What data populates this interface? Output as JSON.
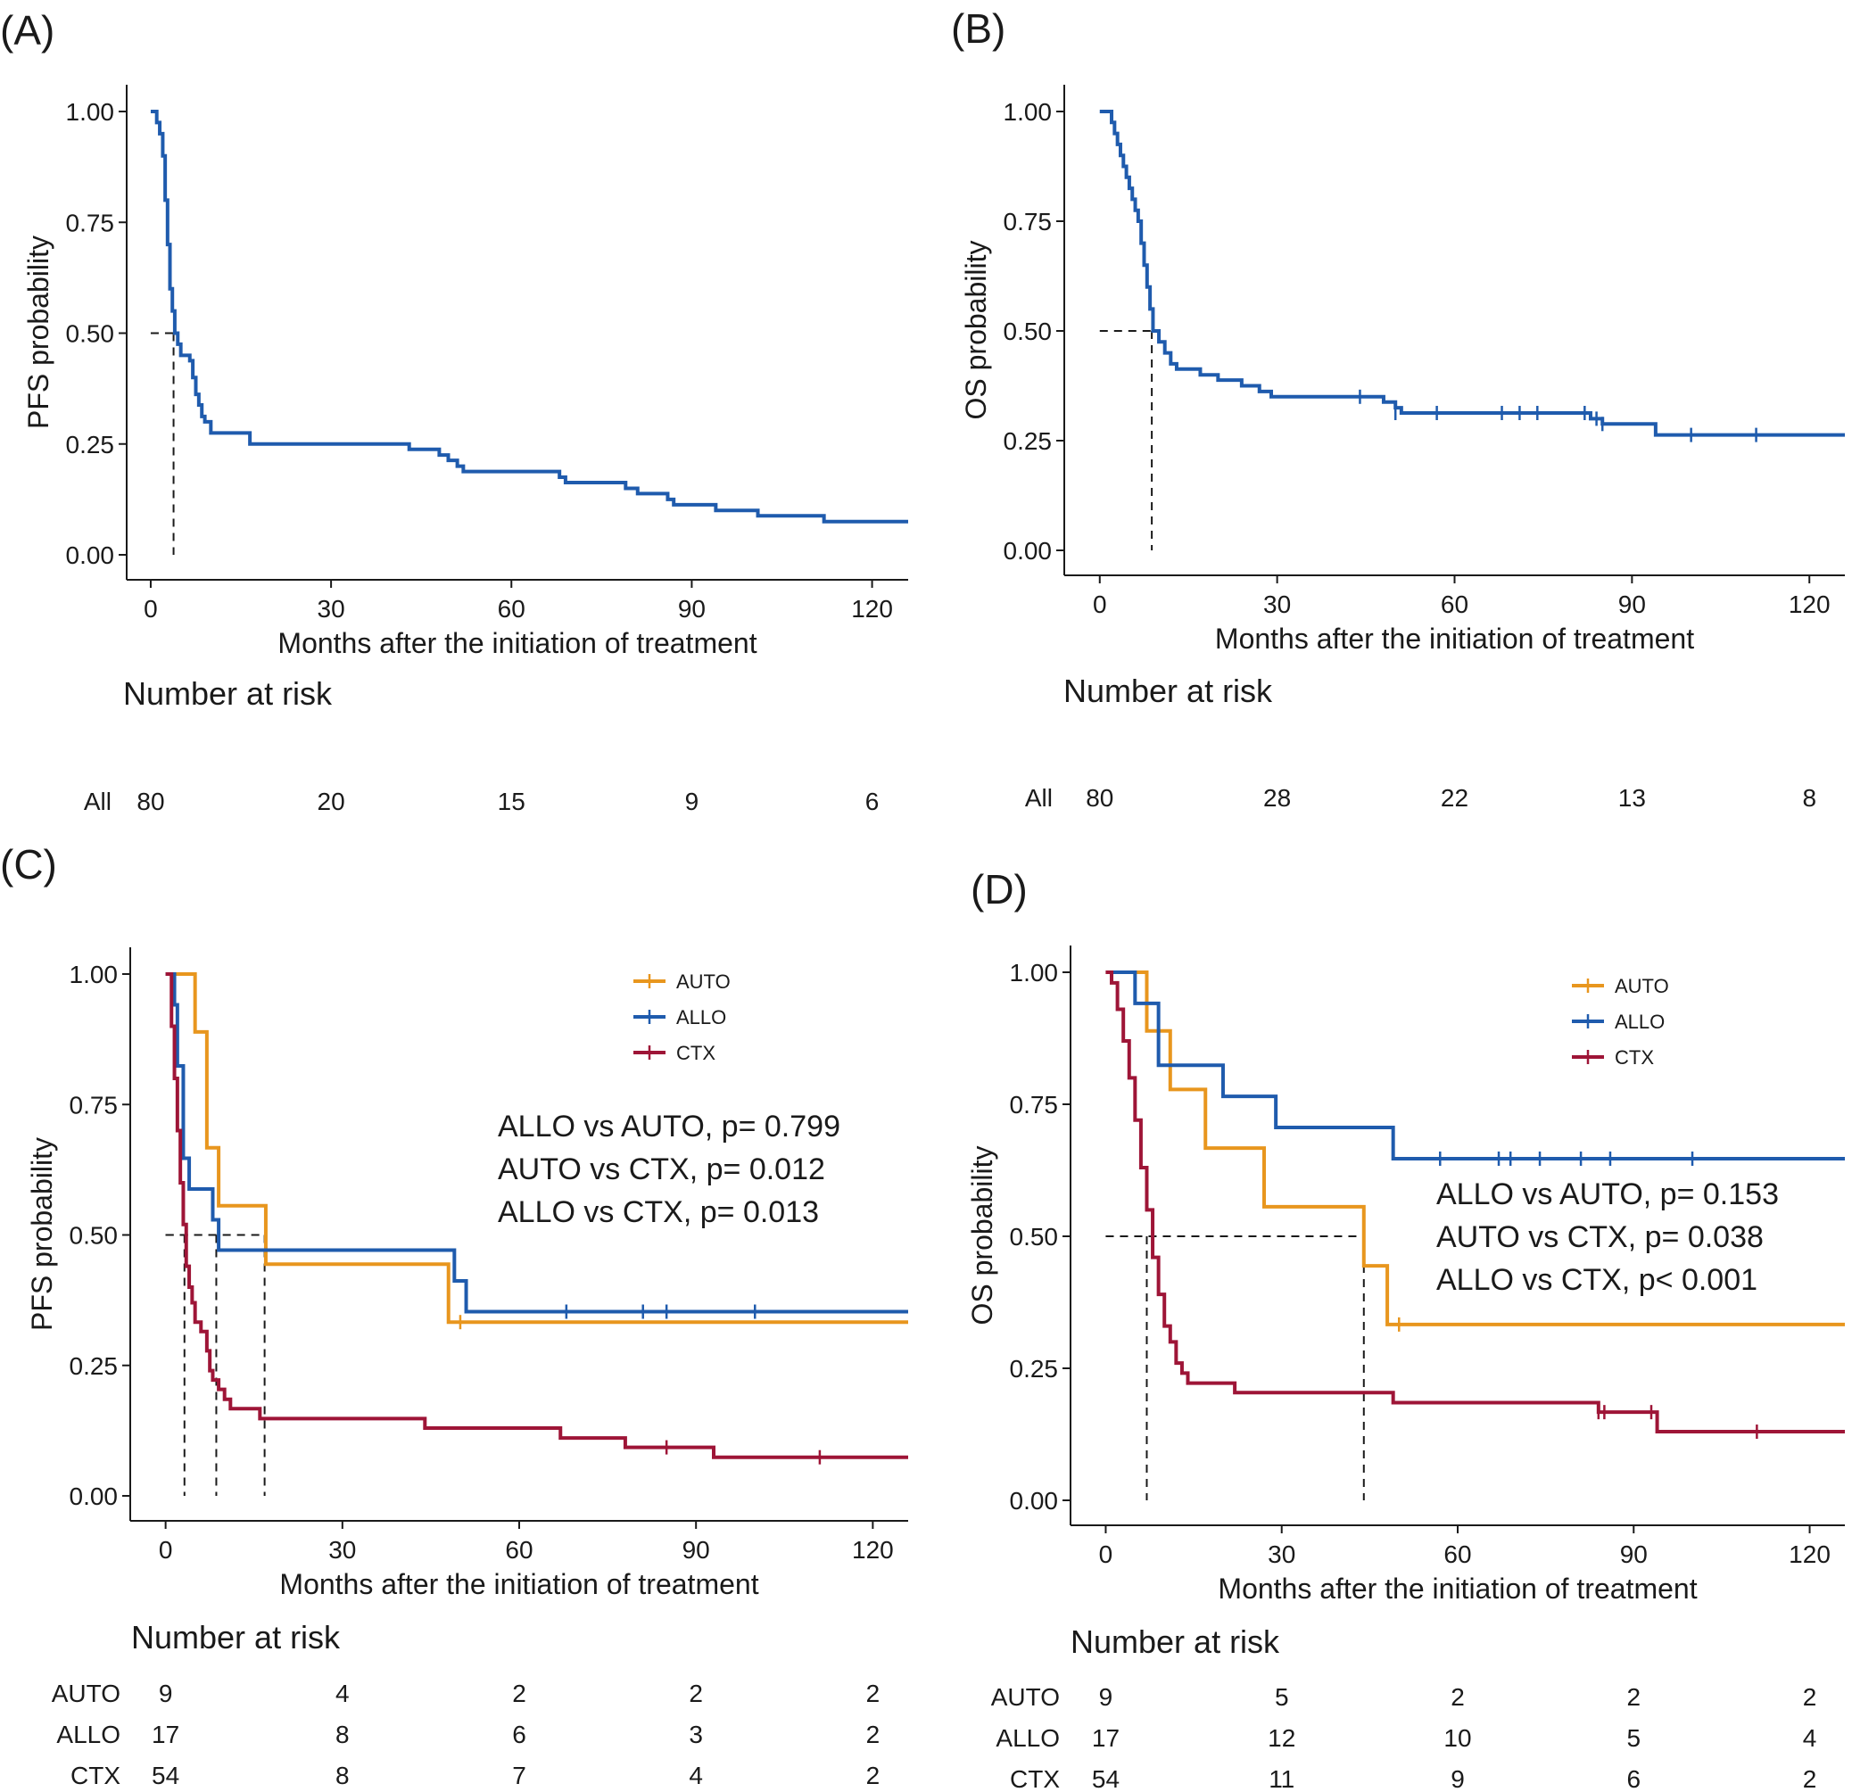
{
  "colors": {
    "AUTO": "#E8961E",
    "ALLO": "#1F5BAD",
    "CTX": "#9E1537",
    "All": "#1F5BAD",
    "axis": "#1a1a1a"
  },
  "risk_title": "Number at risk",
  "chart_data": [
    {
      "id": "A",
      "type": "line",
      "subtype": "kaplan-meier",
      "panel_label": "(A)",
      "title": "",
      "xlabel": "Months after the initiation of treatment",
      "ylabel": "PFS probability",
      "xlim": [
        -4,
        126
      ],
      "ylim": [
        0,
        1
      ],
      "xticks": [
        0,
        30,
        60,
        90,
        120
      ],
      "yticks": [
        0,
        0.25,
        0.5,
        0.75,
        1
      ],
      "ytick_labels": [
        "0.00",
        "0.25",
        "0.50",
        "0.75",
        "1.00"
      ],
      "median_lines": [
        3.8
      ],
      "series": [
        {
          "name": "All",
          "steps": [
            [
              0,
              1.0
            ],
            [
              1,
              0.975
            ],
            [
              1.5,
              0.95
            ],
            [
              2,
              0.9
            ],
            [
              2.4,
              0.8
            ],
            [
              2.8,
              0.7
            ],
            [
              3.2,
              0.6
            ],
            [
              3.6,
              0.55
            ],
            [
              4,
              0.5
            ],
            [
              4.5,
              0.475
            ],
            [
              5,
              0.45
            ],
            [
              6.5,
              0.438
            ],
            [
              7,
              0.4
            ],
            [
              7.5,
              0.362
            ],
            [
              8,
              0.338
            ],
            [
              8.5,
              0.312
            ],
            [
              9,
              0.3
            ],
            [
              10,
              0.275
            ],
            [
              16.5,
              0.25
            ],
            [
              43,
              0.238
            ],
            [
              48,
              0.225
            ],
            [
              49.5,
              0.213
            ],
            [
              51,
              0.2
            ],
            [
              52,
              0.188
            ],
            [
              68,
              0.175
            ],
            [
              69,
              0.163
            ],
            [
              79,
              0.15
            ],
            [
              81,
              0.138
            ],
            [
              86,
              0.125
            ],
            [
              87,
              0.113
            ],
            [
              94,
              0.1
            ],
            [
              101,
              0.088
            ],
            [
              112,
              0.075
            ],
            [
              126,
              0.075
            ]
          ],
          "censors": []
        }
      ],
      "risk_table": {
        "times": [
          0,
          30,
          60,
          90,
          120
        ],
        "rows": [
          {
            "label": "All",
            "values": [
              "80",
              "20",
              "15",
              "9",
              "6"
            ]
          }
        ]
      },
      "pvalues": [],
      "legend": []
    },
    {
      "id": "B",
      "type": "line",
      "subtype": "kaplan-meier",
      "panel_label": "(B)",
      "title": "",
      "xlabel": "Months after the initiation of treatment",
      "ylabel": "OS probability",
      "xlim": [
        -6,
        126
      ],
      "ylim": [
        0,
        1
      ],
      "xticks": [
        0,
        30,
        60,
        90,
        120
      ],
      "yticks": [
        0,
        0.25,
        0.5,
        0.75,
        1
      ],
      "ytick_labels": [
        "0.00",
        "0.25",
        "0.50",
        "0.75",
        "1.00"
      ],
      "median_lines": [
        8.8
      ],
      "series": [
        {
          "name": "All",
          "steps": [
            [
              0,
              1.0
            ],
            [
              1.5,
              1.0
            ],
            [
              2,
              0.975
            ],
            [
              2.5,
              0.95
            ],
            [
              3,
              0.925
            ],
            [
              3.5,
              0.9
            ],
            [
              4,
              0.875
            ],
            [
              4.5,
              0.85
            ],
            [
              5,
              0.825
            ],
            [
              5.5,
              0.8
            ],
            [
              6,
              0.775
            ],
            [
              6.5,
              0.75
            ],
            [
              7,
              0.7
            ],
            [
              7.5,
              0.65
            ],
            [
              8,
              0.6
            ],
            [
              8.5,
              0.55
            ],
            [
              9,
              0.5
            ],
            [
              10,
              0.475
            ],
            [
              11,
              0.45
            ],
            [
              12,
              0.425
            ],
            [
              13,
              0.413
            ],
            [
              17,
              0.4
            ],
            [
              20,
              0.388
            ],
            [
              24,
              0.375
            ],
            [
              27,
              0.362
            ],
            [
              29,
              0.35
            ],
            [
              48,
              0.338
            ],
            [
              50,
              0.325
            ],
            [
              51,
              0.313
            ],
            [
              83,
              0.3
            ],
            [
              85,
              0.288
            ],
            [
              88,
              0.288
            ],
            [
              94,
              0.263
            ],
            [
              126,
              0.263
            ]
          ],
          "censors": [
            [
              44,
              0.35
            ],
            [
              50,
              0.313
            ],
            [
              57,
              0.313
            ],
            [
              68,
              0.313
            ],
            [
              71,
              0.313
            ],
            [
              74,
              0.313
            ],
            [
              82,
              0.313
            ],
            [
              84,
              0.3
            ],
            [
              85,
              0.288
            ],
            [
              100,
              0.263
            ],
            [
              111,
              0.263
            ]
          ]
        }
      ],
      "risk_table": {
        "times": [
          0,
          30,
          60,
          90,
          120
        ],
        "rows": [
          {
            "label": "All",
            "values": [
              "80",
              "28",
              "22",
              "13",
              "8"
            ]
          }
        ]
      },
      "pvalues": [],
      "legend": []
    },
    {
      "id": "C",
      "type": "line",
      "subtype": "kaplan-meier",
      "panel_label": "(C)",
      "title": "",
      "xlabel": "Months after the initiation of treatment",
      "ylabel": "PFS probability",
      "xlim": [
        -6,
        126
      ],
      "ylim": [
        0,
        1
      ],
      "xticks": [
        0,
        30,
        60,
        90,
        120
      ],
      "yticks": [
        0,
        0.25,
        0.5,
        0.75,
        1
      ],
      "ytick_labels": [
        "0.00",
        "0.25",
        "0.50",
        "0.75",
        "1.00"
      ],
      "median_lines": [
        3.2,
        8.6,
        16.8
      ],
      "series": [
        {
          "name": "AUTO",
          "steps": [
            [
              0,
              1.0
            ],
            [
              5,
              0.889
            ],
            [
              7,
              0.667
            ],
            [
              9,
              0.556
            ],
            [
              17,
              0.444
            ],
            [
              48,
              0.333
            ],
            [
              126,
              0.333
            ]
          ],
          "censors": [
            [
              50,
              0.333
            ]
          ]
        },
        {
          "name": "ALLO",
          "steps": [
            [
              0,
              1.0
            ],
            [
              1.5,
              0.941
            ],
            [
              2,
              0.824
            ],
            [
              3,
              0.647
            ],
            [
              4,
              0.588
            ],
            [
              8,
              0.529
            ],
            [
              9,
              0.471
            ],
            [
              49,
              0.412
            ],
            [
              51,
              0.353
            ],
            [
              126,
              0.353
            ]
          ],
          "censors": [
            [
              68,
              0.353
            ],
            [
              81,
              0.353
            ],
            [
              85,
              0.353
            ],
            [
              100,
              0.353
            ]
          ]
        },
        {
          "name": "CTX",
          "steps": [
            [
              0,
              1.0
            ],
            [
              1,
              0.9
            ],
            [
              1.5,
              0.8
            ],
            [
              2,
              0.7
            ],
            [
              2.5,
              0.6
            ],
            [
              3,
              0.52
            ],
            [
              3.5,
              0.44
            ],
            [
              4,
              0.4
            ],
            [
              4.5,
              0.37
            ],
            [
              5,
              0.333
            ],
            [
              6,
              0.315
            ],
            [
              7,
              0.278
            ],
            [
              7.5,
              0.24
            ],
            [
              8,
              0.222
            ],
            [
              9,
              0.204
            ],
            [
              10,
              0.185
            ],
            [
              11,
              0.167
            ],
            [
              16,
              0.148
            ],
            [
              44,
              0.13
            ],
            [
              67,
              0.111
            ],
            [
              78,
              0.093
            ],
            [
              93,
              0.074
            ],
            [
              126,
              0.074
            ]
          ],
          "censors": [
            [
              85,
              0.093
            ],
            [
              111,
              0.074
            ]
          ]
        }
      ],
      "risk_table": {
        "times": [
          0,
          30,
          60,
          90,
          120
        ],
        "rows": [
          {
            "label": "AUTO",
            "values": [
              "9",
              "4",
              "2",
              "2",
              "2"
            ]
          },
          {
            "label": "ALLO",
            "values": [
              "17",
              "8",
              "6",
              "3",
              "2"
            ]
          },
          {
            "label": "CTX",
            "values": [
              "54",
              "8",
              "7",
              "4",
              "2"
            ]
          }
        ]
      },
      "pvalues": [
        "ALLO vs AUTO, p= 0.799",
        "AUTO vs CTX, p= 0.012",
        "ALLO vs CTX, p= 0.013"
      ],
      "legend": [
        "AUTO",
        "ALLO",
        "CTX"
      ]
    },
    {
      "id": "D",
      "type": "line",
      "subtype": "kaplan-meier",
      "panel_label": "(D)",
      "title": "",
      "xlabel": "Months after the initiation of treatment",
      "ylabel": "OS probability",
      "xlim": [
        -6,
        126
      ],
      "ylim": [
        0,
        1
      ],
      "xticks": [
        0,
        30,
        60,
        90,
        120
      ],
      "yticks": [
        0,
        0.25,
        0.5,
        0.75,
        1
      ],
      "ytick_labels": [
        "0.00",
        "0.25",
        "0.50",
        "0.75",
        "1.00"
      ],
      "median_lines": [
        7,
        44
      ],
      "series": [
        {
          "name": "AUTO",
          "steps": [
            [
              0,
              1.0
            ],
            [
              7,
              0.889
            ],
            [
              11,
              0.778
            ],
            [
              17,
              0.667
            ],
            [
              27,
              0.556
            ],
            [
              44,
              0.444
            ],
            [
              48,
              0.333
            ],
            [
              126,
              0.333
            ]
          ],
          "censors": [
            [
              50,
              0.333
            ]
          ]
        },
        {
          "name": "ALLO",
          "steps": [
            [
              0,
              1.0
            ],
            [
              5,
              0.941
            ],
            [
              9,
              0.824
            ],
            [
              20,
              0.765
            ],
            [
              29,
              0.706
            ],
            [
              49,
              0.647
            ],
            [
              126,
              0.647
            ]
          ],
          "censors": [
            [
              57,
              0.647
            ],
            [
              67,
              0.647
            ],
            [
              69,
              0.647
            ],
            [
              74,
              0.647
            ],
            [
              81,
              0.647
            ],
            [
              86,
              0.647
            ],
            [
              100,
              0.647
            ]
          ]
        },
        {
          "name": "CTX",
          "steps": [
            [
              0,
              1.0
            ],
            [
              1,
              0.98
            ],
            [
              2,
              0.93
            ],
            [
              3,
              0.87
            ],
            [
              4,
              0.8
            ],
            [
              5,
              0.72
            ],
            [
              6,
              0.63
            ],
            [
              7,
              0.55
            ],
            [
              8,
              0.46
            ],
            [
              9,
              0.39
            ],
            [
              10,
              0.33
            ],
            [
              11,
              0.3
            ],
            [
              12,
              0.26
            ],
            [
              13,
              0.241
            ],
            [
              14,
              0.222
            ],
            [
              22,
              0.204
            ],
            [
              44,
              0.204
            ],
            [
              49,
              0.185
            ],
            [
              84,
              0.167
            ],
            [
              94,
              0.13
            ],
            [
              126,
              0.13
            ]
          ],
          "censors": [
            [
              84,
              0.167
            ],
            [
              85,
              0.167
            ],
            [
              93,
              0.167
            ],
            [
              111,
              0.13
            ]
          ]
        }
      ],
      "risk_table": {
        "times": [
          0,
          30,
          60,
          90,
          120
        ],
        "rows": [
          {
            "label": "AUTO",
            "values": [
              "9",
              "5",
              "2",
              "2",
              "2"
            ]
          },
          {
            "label": "ALLO",
            "values": [
              "17",
              "12",
              "10",
              "5",
              "4"
            ]
          },
          {
            "label": "CTX",
            "values": [
              "54",
              "11",
              "9",
              "6",
              "2"
            ]
          }
        ]
      },
      "pvalues": [
        "ALLO vs AUTO, p= 0.153",
        "AUTO vs CTX, p= 0.038",
        "ALLO vs CTX, p< 0.001"
      ],
      "legend": [
        "AUTO",
        "ALLO",
        "CTX"
      ]
    }
  ]
}
